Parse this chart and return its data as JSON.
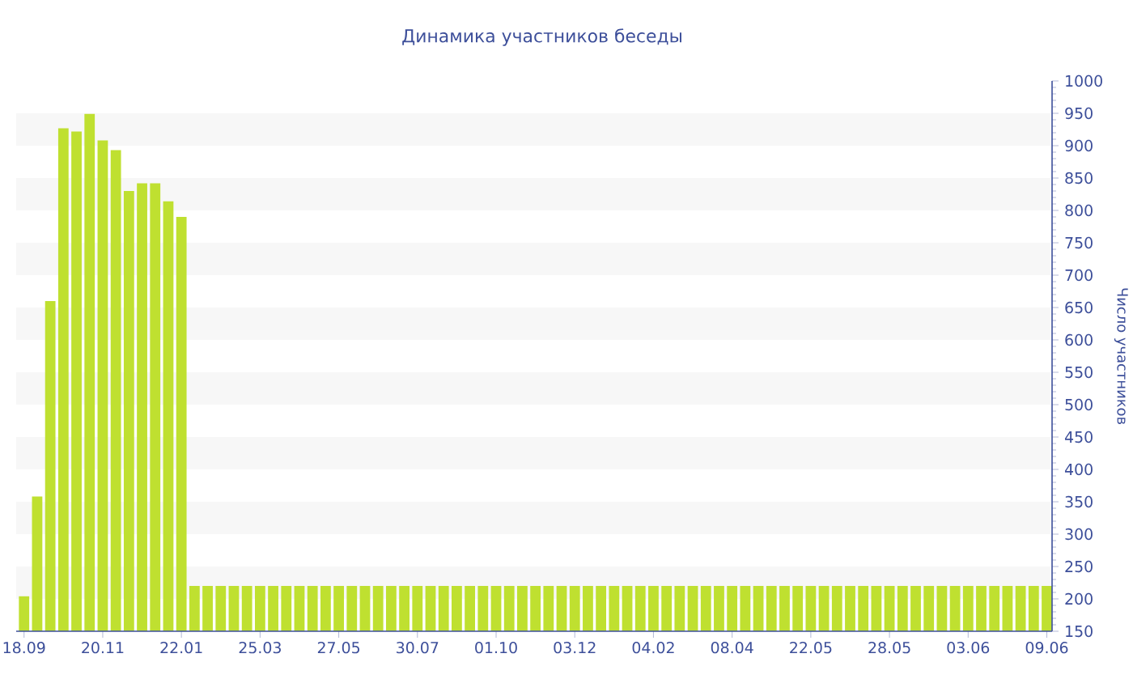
{
  "chart_data": {
    "type": "bar",
    "title": "Динамика участников беседы",
    "ylabel": "Число участников",
    "categories": [
      "18.09",
      null,
      null,
      null,
      null,
      null,
      "20.11",
      null,
      null,
      null,
      null,
      null,
      "22.01",
      null,
      null,
      null,
      null,
      null,
      "25.03",
      null,
      null,
      null,
      null,
      null,
      "27.05",
      null,
      null,
      null,
      null,
      null,
      "30.07",
      null,
      null,
      null,
      null,
      null,
      "01.10",
      null,
      null,
      null,
      null,
      null,
      "03.12",
      null,
      null,
      null,
      null,
      null,
      "04.02",
      null,
      null,
      null,
      null,
      null,
      "08.04",
      null,
      null,
      null,
      null,
      null,
      "22.05",
      null,
      null,
      null,
      null,
      null,
      "28.05",
      null,
      null,
      null,
      null,
      null,
      "03.06",
      null,
      null,
      null,
      null,
      null,
      "09.06"
    ],
    "values": [
      204,
      358,
      660,
      927,
      922,
      949,
      908,
      893,
      830,
      842,
      842,
      814,
      790,
      220,
      220,
      220,
      220,
      220,
      220,
      220,
      220,
      220,
      220,
      220,
      220,
      220,
      220,
      220,
      220,
      220,
      220,
      220,
      220,
      220,
      220,
      220,
      220,
      220,
      220,
      220,
      220,
      220,
      220,
      220,
      220,
      220,
      220,
      220,
      220,
      220,
      220,
      220,
      220,
      220,
      220,
      220,
      220,
      220,
      220,
      220,
      220,
      220,
      220,
      220,
      220,
      220,
      220,
      220,
      220,
      220,
      220,
      220,
      220,
      220,
      220,
      220,
      220,
      220,
      220
    ],
    "color": "#bfe030",
    "ylim": [
      150,
      1000
    ],
    "yticks": [
      150,
      200,
      250,
      300,
      350,
      400,
      450,
      500,
      550,
      600,
      650,
      700,
      750,
      800,
      850,
      900,
      950,
      1000
    ],
    "bands": [
      {
        "axis": "y",
        "from": 200,
        "to": 250,
        "color": "#f7f7f7"
      },
      {
        "axis": "y",
        "from": 300,
        "to": 350,
        "color": "#f7f7f7"
      },
      {
        "axis": "y",
        "from": 400,
        "to": 450,
        "color": "#f7f7f7"
      },
      {
        "axis": "y",
        "from": 500,
        "to": 550,
        "color": "#f7f7f7"
      },
      {
        "axis": "y",
        "from": 600,
        "to": 650,
        "color": "#f7f7f7"
      },
      {
        "axis": "y",
        "from": 700,
        "to": 750,
        "color": "#f7f7f7"
      },
      {
        "axis": "y",
        "from": 800,
        "to": 850,
        "color": "#f7f7f7"
      },
      {
        "axis": "y",
        "from": 900,
        "to": 950,
        "color": "#f7f7f7"
      }
    ]
  }
}
